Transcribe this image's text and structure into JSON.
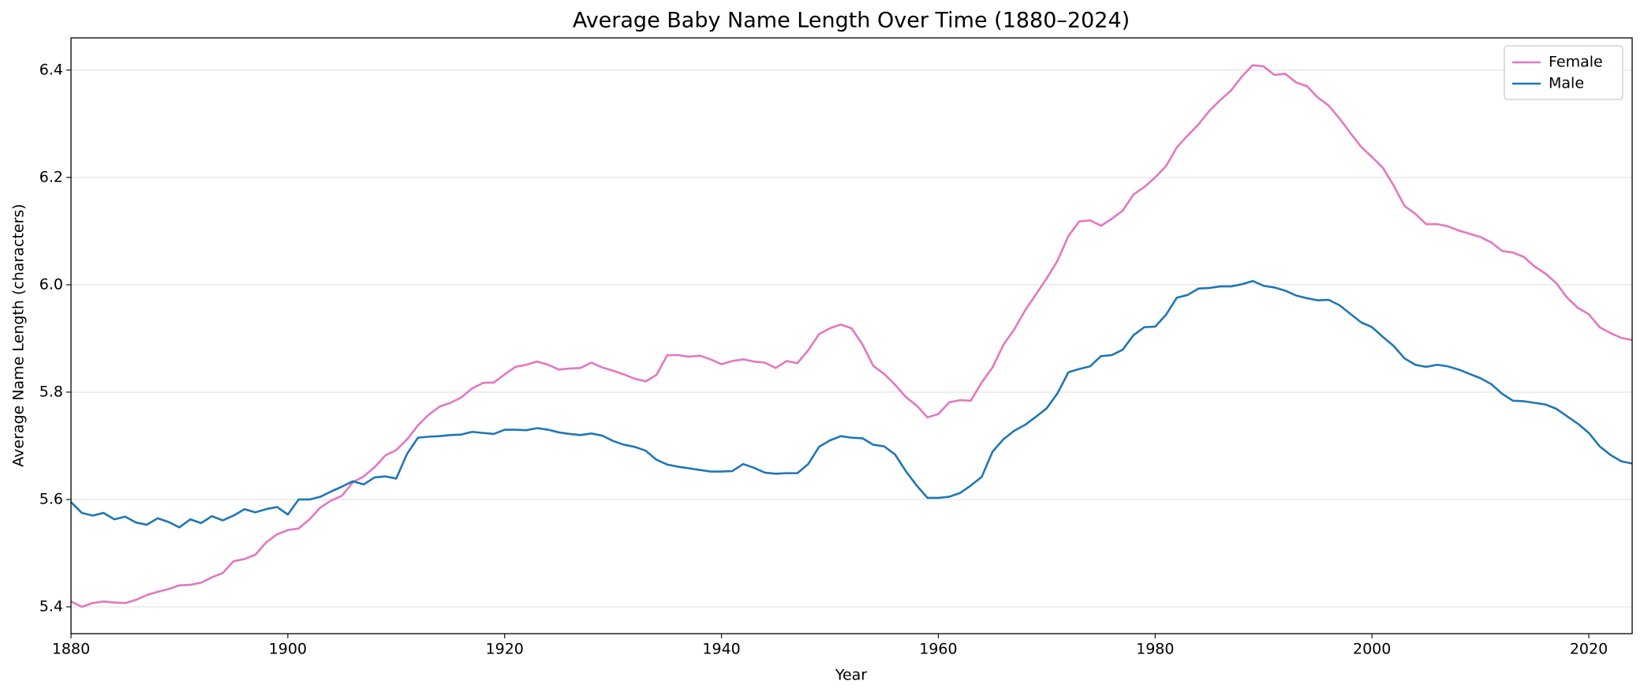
{
  "chart_data": {
    "type": "line",
    "title": "Average Baby Name Length Over Time (1880–2024)",
    "xlabel": "Year",
    "ylabel": "Average Name Length (characters)",
    "x": [
      1880,
      1881,
      1882,
      1883,
      1884,
      1885,
      1886,
      1887,
      1888,
      1889,
      1890,
      1891,
      1892,
      1893,
      1894,
      1895,
      1896,
      1897,
      1898,
      1899,
      1900,
      1901,
      1902,
      1903,
      1904,
      1905,
      1906,
      1907,
      1908,
      1909,
      1910,
      1911,
      1912,
      1913,
      1914,
      1915,
      1916,
      1917,
      1918,
      1919,
      1920,
      1921,
      1922,
      1923,
      1924,
      1925,
      1926,
      1927,
      1928,
      1929,
      1930,
      1931,
      1932,
      1933,
      1934,
      1935,
      1936,
      1937,
      1938,
      1939,
      1940,
      1941,
      1942,
      1943,
      1944,
      1945,
      1946,
      1947,
      1948,
      1949,
      1950,
      1951,
      1952,
      1953,
      1954,
      1955,
      1956,
      1957,
      1958,
      1959,
      1960,
      1961,
      1962,
      1963,
      1964,
      1965,
      1966,
      1967,
      1968,
      1969,
      1970,
      1971,
      1972,
      1973,
      1974,
      1975,
      1976,
      1977,
      1978,
      1979,
      1980,
      1981,
      1982,
      1983,
      1984,
      1985,
      1986,
      1987,
      1988,
      1989,
      1990,
      1991,
      1992,
      1993,
      1994,
      1995,
      1996,
      1997,
      1998,
      1999,
      2000,
      2001,
      2002,
      2003,
      2004,
      2005,
      2006,
      2007,
      2008,
      2009,
      2010,
      2011,
      2012,
      2013,
      2014,
      2015,
      2016,
      2017,
      2018,
      2019,
      2020,
      2021,
      2022,
      2023,
      2024
    ],
    "series": [
      {
        "name": "Female",
        "color": "#e377c2",
        "values": [
          5.41,
          5.4,
          5.407,
          5.41,
          5.408,
          5.407,
          5.413,
          5.422,
          5.428,
          5.433,
          5.44,
          5.441,
          5.445,
          5.455,
          5.463,
          5.485,
          5.489,
          5.497,
          5.52,
          5.535,
          5.543,
          5.546,
          5.563,
          5.585,
          5.598,
          5.607,
          5.632,
          5.643,
          5.66,
          5.682,
          5.692,
          5.712,
          5.738,
          5.758,
          5.773,
          5.78,
          5.79,
          5.807,
          5.817,
          5.818,
          5.833,
          5.847,
          5.851,
          5.857,
          5.851,
          5.842,
          5.844,
          5.845,
          5.855,
          5.846,
          5.84,
          5.833,
          5.825,
          5.82,
          5.832,
          5.869,
          5.869,
          5.866,
          5.868,
          5.861,
          5.852,
          5.858,
          5.861,
          5.857,
          5.855,
          5.845,
          5.858,
          5.854,
          5.878,
          5.908,
          5.919,
          5.926,
          5.919,
          5.889,
          5.849,
          5.834,
          5.814,
          5.791,
          5.775,
          5.753,
          5.759,
          5.781,
          5.785,
          5.784,
          5.818,
          5.846,
          5.888,
          5.917,
          5.952,
          5.982,
          6.012,
          6.045,
          6.091,
          6.118,
          6.12,
          6.11,
          6.123,
          6.138,
          6.168,
          6.182,
          6.2,
          6.221,
          6.256,
          6.278,
          6.299,
          6.324,
          6.344,
          6.362,
          6.388,
          6.409,
          6.407,
          6.391,
          6.393,
          6.377,
          6.37,
          6.349,
          6.334,
          6.31,
          6.283,
          6.257,
          6.238,
          6.218,
          6.185,
          6.147,
          6.132,
          6.113,
          6.113,
          6.109,
          6.101,
          6.095,
          6.089,
          6.079,
          6.063,
          6.06,
          6.052,
          6.034,
          6.021,
          6.003,
          5.976,
          5.957,
          5.945,
          5.921,
          5.91,
          5.901,
          5.897
        ]
      },
      {
        "name": "Male",
        "color": "#1f77b4",
        "values": [
          5.595,
          5.575,
          5.57,
          5.575,
          5.563,
          5.568,
          5.557,
          5.553,
          5.565,
          5.558,
          5.548,
          5.563,
          5.556,
          5.569,
          5.561,
          5.57,
          5.582,
          5.576,
          5.582,
          5.586,
          5.572,
          5.6,
          5.6,
          5.605,
          5.615,
          5.624,
          5.634,
          5.628,
          5.641,
          5.643,
          5.639,
          5.685,
          5.715,
          5.717,
          5.718,
          5.72,
          5.721,
          5.726,
          5.724,
          5.722,
          5.73,
          5.73,
          5.729,
          5.733,
          5.73,
          5.725,
          5.722,
          5.72,
          5.723,
          5.719,
          5.709,
          5.702,
          5.698,
          5.691,
          5.674,
          5.665,
          5.661,
          5.658,
          5.655,
          5.652,
          5.652,
          5.653,
          5.666,
          5.659,
          5.65,
          5.648,
          5.649,
          5.649,
          5.666,
          5.698,
          5.71,
          5.718,
          5.715,
          5.714,
          5.702,
          5.699,
          5.684,
          5.653,
          5.626,
          5.603,
          5.603,
          5.605,
          5.612,
          5.626,
          5.642,
          5.689,
          5.712,
          5.728,
          5.739,
          5.754,
          5.77,
          5.798,
          5.837,
          5.843,
          5.848,
          5.867,
          5.869,
          5.879,
          5.906,
          5.921,
          5.922,
          5.944,
          5.976,
          5.981,
          5.993,
          5.994,
          5.997,
          5.997,
          6.001,
          6.007,
          5.998,
          5.995,
          5.989,
          5.98,
          5.975,
          5.971,
          5.972,
          5.962,
          5.946,
          5.93,
          5.921,
          5.903,
          5.886,
          5.863,
          5.851,
          5.847,
          5.851,
          5.848,
          5.842,
          5.834,
          5.826,
          5.815,
          5.797,
          5.784,
          5.783,
          5.78,
          5.777,
          5.769,
          5.755,
          5.741,
          5.724,
          5.699,
          5.683,
          5.671,
          5.667
        ]
      }
    ],
    "xlim": [
      1880,
      2024
    ],
    "xticks": [
      1880,
      1900,
      1920,
      1940,
      1960,
      1980,
      2000,
      2020
    ],
    "ylim": [
      5.35,
      6.46
    ],
    "yticks": [
      5.4,
      5.6,
      5.8,
      {
        "value": 6,
        "label": "6.0"
      },
      6.2,
      6.4
    ],
    "grid": "y",
    "legend": "upper right"
  }
}
